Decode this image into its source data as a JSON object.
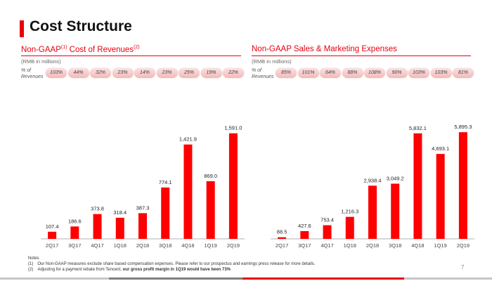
{
  "page": {
    "title": "Cost Structure",
    "page_number": "7"
  },
  "left": {
    "title_prefix": "Non-GAAP",
    "title_sup1": "(1)",
    "title_mid": " Cost of Revenues",
    "title_sup2": "(2)",
    "unit": "(RMB in millions)",
    "pct_label_line1": "% of",
    "pct_label_line2": "Revenues",
    "percentages": [
      "103%",
      "44%",
      "32%",
      "23%",
      "14%",
      "23%",
      "25%",
      "19%",
      "22%"
    ]
  },
  "right": {
    "title": "Non-GAAP Sales & Marketing Expenses",
    "unit": "(RMB in millions)",
    "pct_label_line1": "% of",
    "pct_label_line2": "Revenues",
    "percentages": [
      "85%",
      "101%",
      "64%",
      "88%",
      "108%",
      "90%",
      "103%",
      "103%",
      "81%"
    ]
  },
  "notes": {
    "heading": "Notes",
    "note1_num": "(1)",
    "note1": "Our Non-GAAP measures exclude share based compensation expenses. Please refer to our prospectus and earnings press release for more details.",
    "note2_num": "(2)",
    "note2_a": "Adjusting for a payment rebate from Tencent, ",
    "note2_b": "our gross profit margin in 1Q19 would have been 73%"
  },
  "colors": {
    "accent": "#e8000d",
    "bar": "#ff0000"
  },
  "chart_data": [
    {
      "type": "bar",
      "title": "Non-GAAP Cost of Revenues",
      "categories": [
        "2Q17",
        "3Q17",
        "4Q17",
        "1Q18",
        "2Q18",
        "3Q18",
        "4Q18",
        "1Q19",
        "2Q19"
      ],
      "values": [
        107.4,
        186.6,
        373.8,
        318.4,
        387.3,
        774.1,
        1421.9,
        869.0,
        1591.0
      ],
      "labels": [
        "107.4",
        "186.6",
        "373.8",
        "318.4",
        "387.3",
        "774.1",
        "1,421.9",
        "869.0",
        "1,591.0"
      ],
      "ylim": [
        0,
        1800
      ],
      "grid": false
    },
    {
      "type": "bar",
      "title": "Non-GAAP Sales & Marketing Expenses",
      "categories": [
        "2Q17",
        "3Q17",
        "4Q17",
        "1Q18",
        "2Q18",
        "3Q18",
        "4Q18",
        "1Q19",
        "2Q19"
      ],
      "values": [
        88.5,
        427.6,
        753.4,
        1216.3,
        2938.4,
        3049.2,
        5832.1,
        4693.1,
        5895.3
      ],
      "labels": [
        "88.5",
        "427.6",
        "753.4",
        "1,216.3",
        "2,938.4",
        "3,049.2",
        "5,832.1",
        "4,693.1",
        "5,895.3"
      ],
      "ylim": [
        0,
        6600
      ],
      "grid": false
    }
  ]
}
